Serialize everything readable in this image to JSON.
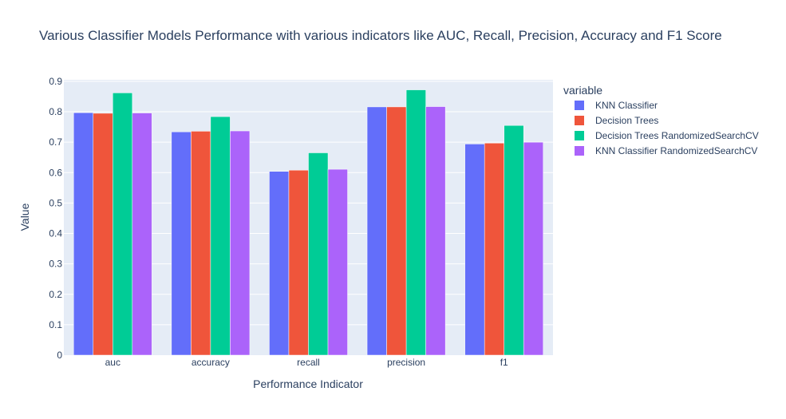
{
  "chart_data": {
    "type": "bar",
    "title": "Various Classifier Models Performance with various indicators like AUC, Recall, Precision, Accuracy and F1 Score",
    "xlabel": "Performance Indicator",
    "ylabel": "Value",
    "categories": [
      "auc",
      "accuracy",
      "recall",
      "precision",
      "f1"
    ],
    "ylim": [
      0,
      0.9
    ],
    "yticks": [
      "0",
      "0.1",
      "0.2",
      "0.3",
      "0.4",
      "0.5",
      "0.6",
      "0.7",
      "0.8",
      "0.9"
    ],
    "ytick_values": [
      0,
      0.1,
      0.2,
      0.3,
      0.4,
      0.5,
      0.6,
      0.7,
      0.8,
      0.9
    ],
    "grid": true,
    "legend": {
      "title": "variable",
      "position": "right"
    },
    "series": [
      {
        "name": "KNN Classifier",
        "color": "#636efa",
        "values": [
          0.797,
          0.734,
          0.604,
          0.816,
          0.694
        ]
      },
      {
        "name": "Decision Trees",
        "color": "#ef553b",
        "values": [
          0.795,
          0.736,
          0.608,
          0.816,
          0.697
        ]
      },
      {
        "name": "Decision Trees RandomizedSearchCV",
        "color": "#00cc96",
        "values": [
          0.862,
          0.784,
          0.665,
          0.872,
          0.755
        ]
      },
      {
        "name": "KNN Classifier RandomizedSearchCV",
        "color": "#ab63fa",
        "values": [
          0.796,
          0.737,
          0.611,
          0.817,
          0.7
        ]
      }
    ]
  }
}
